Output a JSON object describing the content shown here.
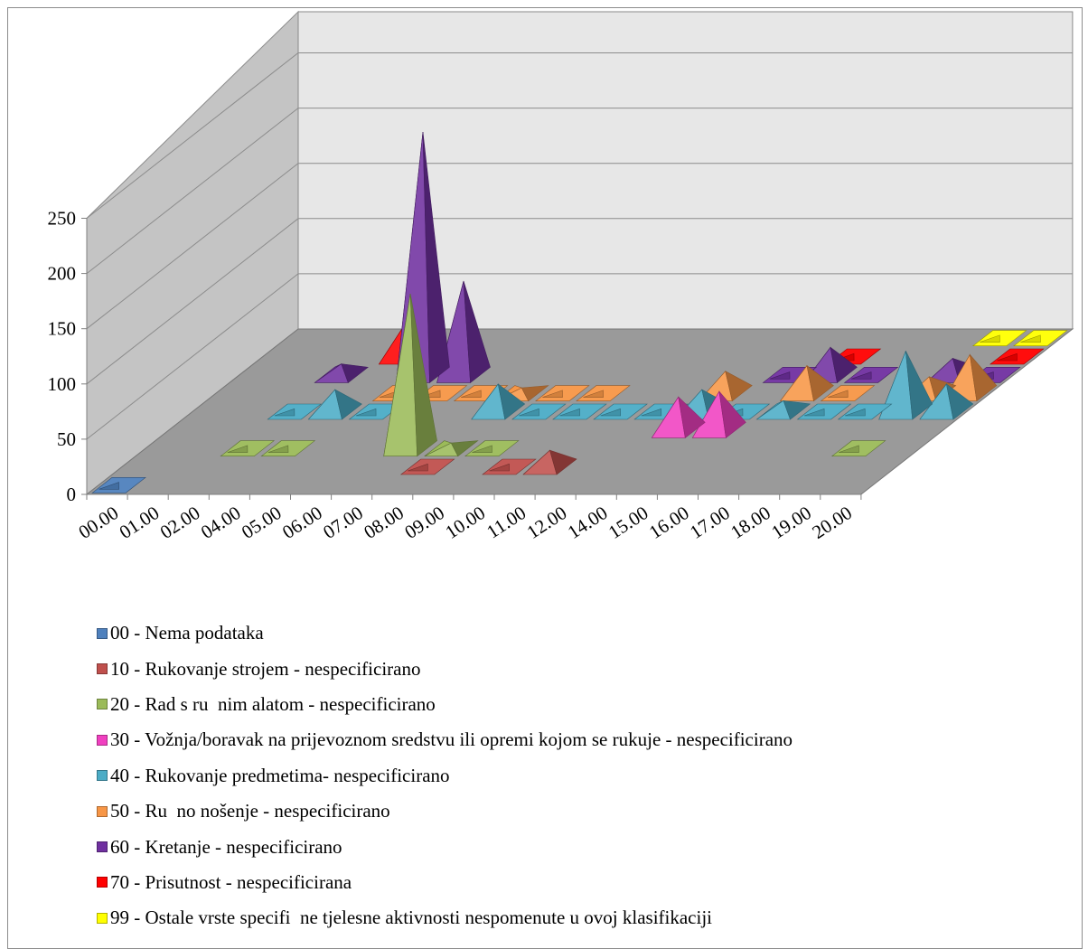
{
  "chart_data": {
    "type": "bar",
    "subtype": "3d-pyramid",
    "title": "",
    "xlabel": "",
    "ylabel": "",
    "ylim": [
      0,
      250
    ],
    "y_ticks": [
      0,
      50,
      100,
      150,
      200,
      250
    ],
    "y_tick_labels": [
      "0",
      "50",
      "100",
      "150",
      "200",
      "250"
    ],
    "grid": true,
    "legend_position": "bottom",
    "categories": [
      "00.00",
      "01.00",
      "02.00",
      "04.00",
      "05.00",
      "06.00",
      "07.00",
      "08.00",
      "09.00",
      "10.00",
      "11.00",
      "12.00",
      "14.00",
      "15.00",
      "16.00",
      "17.00",
      "18.00",
      "19.00",
      "20.00"
    ],
    "series": [
      {
        "name": "00 - Nema podataka",
        "color": "#4F81BD",
        "values": [
          1,
          null,
          null,
          null,
          null,
          null,
          null,
          null,
          null,
          null,
          null,
          null,
          null,
          null,
          null,
          null,
          null,
          null,
          null
        ]
      },
      {
        "name": "10 - Rukovanje strojem - nespecificirano",
        "color": "#C0504D",
        "values": [
          null,
          null,
          null,
          null,
          null,
          null,
          null,
          1,
          null,
          1,
          15,
          null,
          null,
          null,
          null,
          null,
          null,
          null,
          null
        ]
      },
      {
        "name": "20 - Rad s ru  nim alatom - nespecificirano",
        "color": "#9BBB59",
        "values": [
          null,
          null,
          1,
          1,
          null,
          null,
          140,
          5,
          1,
          null,
          null,
          null,
          null,
          null,
          null,
          null,
          null,
          1,
          null
        ]
      },
      {
        "name": "30 - Vožnja/boravak na prijevoznom sredstvu ili opremi kojom se rukuje - nespecificirano",
        "color": "#F040C0",
        "values": [
          null,
          null,
          null,
          null,
          null,
          null,
          null,
          null,
          null,
          null,
          null,
          null,
          30,
          35,
          null,
          null,
          null,
          null,
          null
        ]
      },
      {
        "name": "40 - Rukovanje predmetima- nespecificirano",
        "color": "#4BACC6",
        "values": [
          null,
          null,
          1,
          20,
          1,
          null,
          null,
          25,
          1,
          1,
          1,
          1,
          20,
          1,
          10,
          1,
          1,
          55,
          25
        ]
      },
      {
        "name": "50 - Ru  no nošenje - nespecificirano",
        "color": "#F79646",
        "values": [
          null,
          null,
          null,
          null,
          1,
          1,
          1,
          5,
          1,
          1,
          null,
          null,
          20,
          null,
          25,
          1,
          null,
          15,
          35
        ]
      },
      {
        "name": "60 - Kretanje - nespecificirano",
        "color": "#7030A0",
        "values": [
          null,
          null,
          10,
          null,
          220,
          85,
          null,
          null,
          null,
          null,
          null,
          null,
          null,
          1,
          25,
          1,
          null,
          15,
          1
        ]
      },
      {
        "name": "70 - Prisutnost - nespecificirana",
        "color": "#FF0000",
        "values": [
          null,
          null,
          null,
          30,
          1,
          null,
          null,
          null,
          null,
          null,
          null,
          null,
          null,
          null,
          1,
          null,
          null,
          null,
          1
        ]
      },
      {
        "name": "99 - Ostale vrste specifi  ne tjelesne aktivnosti nespomenute u ovoj klasifikaciji",
        "color": "#FFFF00",
        "values": [
          null,
          null,
          null,
          null,
          null,
          null,
          null,
          null,
          null,
          null,
          null,
          null,
          null,
          null,
          null,
          null,
          null,
          1,
          1
        ]
      }
    ]
  }
}
